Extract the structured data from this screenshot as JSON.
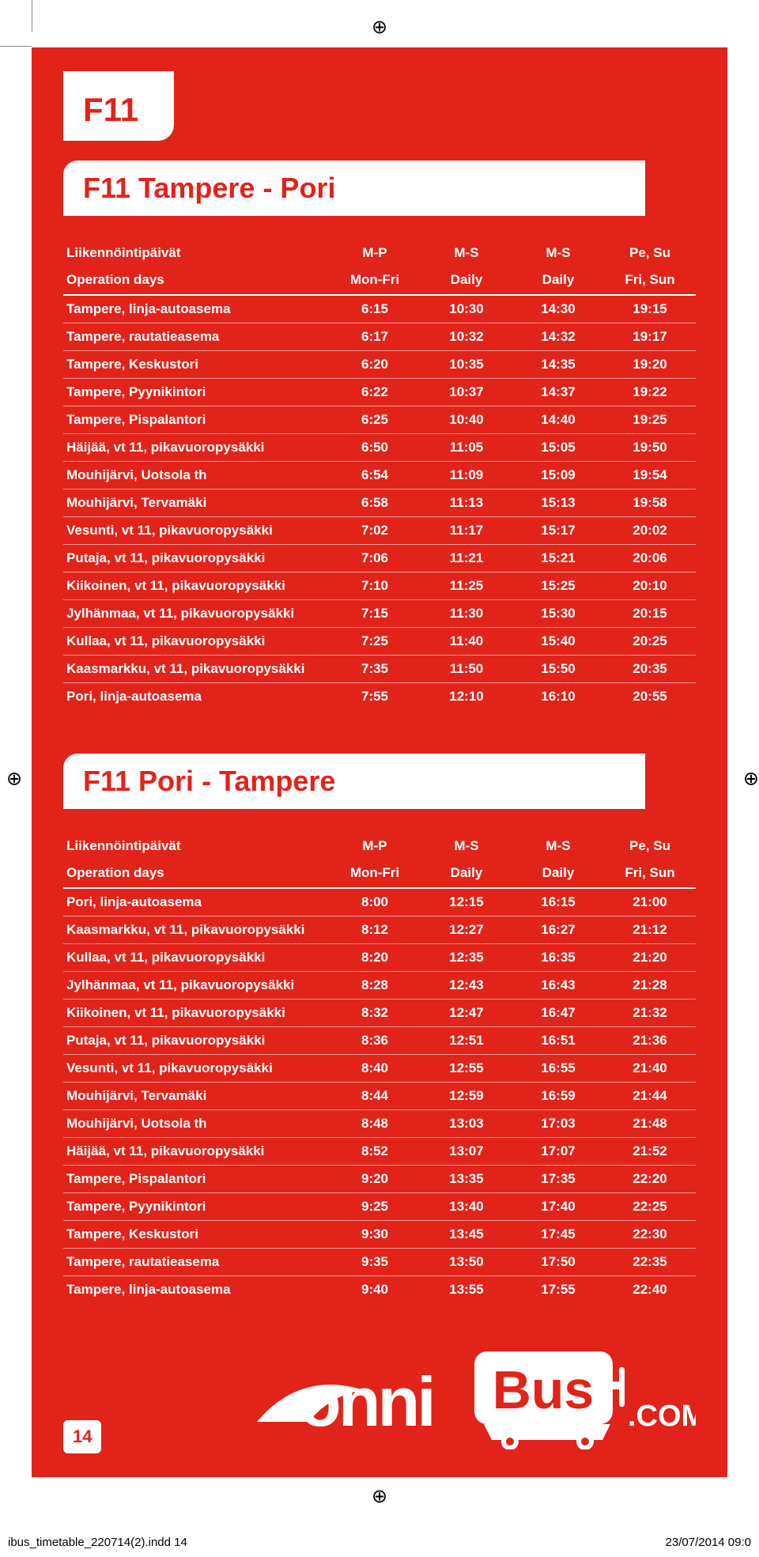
{
  "route_code": "F11",
  "brand_color": "#e2231a",
  "text_color": "#ffffff",
  "logo_text_1": "onni",
  "logo_text_2": "Bus",
  "logo_text_3": ".COM",
  "page_number": "14",
  "footer_file": "ibus_timetable_220714(2).indd   14",
  "footer_date": "23/07/2014   09:0",
  "sections": [
    {
      "title": "F11 Tampere - Pori",
      "header1": [
        "Liikennöintipäivät",
        "M-P",
        "M-S",
        "M-S",
        "Pe, Su"
      ],
      "header2": [
        "Operation days",
        "Mon-Fri",
        "Daily",
        "Daily",
        "Fri, Sun"
      ],
      "rows": [
        [
          "Tampere, linja-autoasema",
          "6:15",
          "10:30",
          "14:30",
          "19:15"
        ],
        [
          "Tampere, rautatieasema",
          "6:17",
          "10:32",
          "14:32",
          "19:17"
        ],
        [
          "Tampere, Keskustori",
          "6:20",
          "10:35",
          "14:35",
          "19:20"
        ],
        [
          "Tampere, Pyynikintori",
          "6:22",
          "10:37",
          "14:37",
          "19:22"
        ],
        [
          "Tampere, Pispalantori",
          "6:25",
          "10:40",
          "14:40",
          "19:25"
        ],
        [
          "Häijää, vt 11, pikavuoropysäkki",
          "6:50",
          "11:05",
          "15:05",
          "19:50"
        ],
        [
          "Mouhijärvi, Uotsola th",
          "6:54",
          "11:09",
          "15:09",
          "19:54"
        ],
        [
          "Mouhijärvi, Tervamäki",
          "6:58",
          "11:13",
          "15:13",
          "19:58"
        ],
        [
          "Vesunti, vt 11, pikavuoropysäkki",
          "7:02",
          "11:17",
          "15:17",
          "20:02"
        ],
        [
          "Putaja, vt 11, pikavuoropysäkki",
          "7:06",
          "11:21",
          "15:21",
          "20:06"
        ],
        [
          "Kiikoinen, vt 11, pikavuoropysäkki",
          "7:10",
          "11:25",
          "15:25",
          "20:10"
        ],
        [
          "Jylhänmaa, vt 11, pikavuoropysäkki",
          "7:15",
          "11:30",
          "15:30",
          "20:15"
        ],
        [
          "Kullaa, vt 11, pikavuoropysäkki",
          "7:25",
          "11:40",
          "15:40",
          "20:25"
        ],
        [
          "Kaasmarkku, vt 11, pikavuoropysäkki",
          "7:35",
          "11:50",
          "15:50",
          "20:35"
        ],
        [
          "Pori, linja-autoasema",
          "7:55",
          "12:10",
          "16:10",
          "20:55"
        ]
      ]
    },
    {
      "title": "F11 Pori - Tampere",
      "header1": [
        "Liikennöintipäivät",
        "M-P",
        "M-S",
        "M-S",
        "Pe, Su"
      ],
      "header2": [
        "Operation days",
        "Mon-Fri",
        "Daily",
        "Daily",
        "Fri, Sun"
      ],
      "rows": [
        [
          "Pori, linja-autoasema",
          "8:00",
          "12:15",
          "16:15",
          "21:00"
        ],
        [
          "Kaasmarkku, vt 11, pikavuoropysäkki",
          "8:12",
          "12:27",
          "16:27",
          "21:12"
        ],
        [
          "Kullaa, vt 11, pikavuoropysäkki",
          "8:20",
          "12:35",
          "16:35",
          "21:20"
        ],
        [
          "Jylhänmaa, vt 11, pikavuoropysäkki",
          "8:28",
          "12:43",
          "16:43",
          "21:28"
        ],
        [
          "Kiikoinen, vt 11, pikavuoropysäkki",
          "8:32",
          "12:47",
          "16:47",
          "21:32"
        ],
        [
          "Putaja, vt 11, pikavuoropysäkki",
          "8:36",
          "12:51",
          "16:51",
          "21:36"
        ],
        [
          "Vesunti, vt 11, pikavuoropysäkki",
          "8:40",
          "12:55",
          "16:55",
          "21:40"
        ],
        [
          "Mouhijärvi, Tervamäki",
          "8:44",
          "12:59",
          "16:59",
          "21:44"
        ],
        [
          "Mouhijärvi, Uotsola th",
          "8:48",
          "13:03",
          "17:03",
          "21:48"
        ],
        [
          "Häijää, vt 11, pikavuoropysäkki",
          "8:52",
          "13:07",
          "17:07",
          "21:52"
        ],
        [
          "Tampere, Pispalantori",
          "9:20",
          "13:35",
          "17:35",
          "22:20"
        ],
        [
          "Tampere, Pyynikintori",
          "9:25",
          "13:40",
          "17:40",
          "22:25"
        ],
        [
          "Tampere, Keskustori",
          "9:30",
          "13:45",
          "17:45",
          "22:30"
        ],
        [
          "Tampere, rautatieasema",
          "9:35",
          "13:50",
          "17:50",
          "22:35"
        ],
        [
          "Tampere, linja-autoasema",
          "9:40",
          "13:55",
          "17:55",
          "22:40"
        ]
      ]
    }
  ]
}
